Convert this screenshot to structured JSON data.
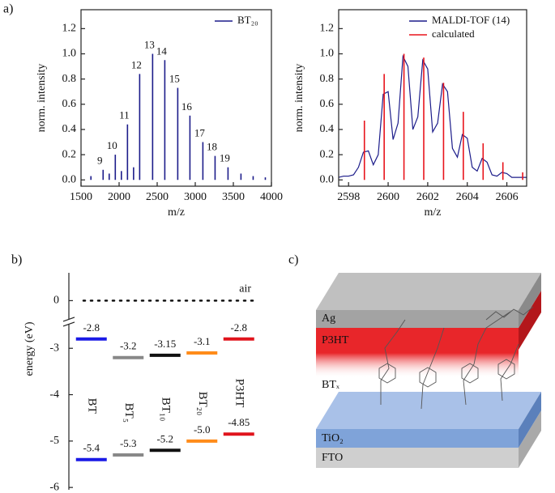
{
  "panel_labels": [
    "a)",
    "b)",
    "c)"
  ],
  "diagram": {
    "layers": [
      "Ag",
      "P3HT",
      "BTₓ",
      "TiO₂",
      "FTO"
    ]
  },
  "chart_data": [
    {
      "type": "spectrum",
      "x_label": "m/z",
      "y_label": "norm. intensity",
      "xlim": [
        1500,
        4000
      ],
      "xticks": [
        1500,
        2000,
        2500,
        3000,
        3500,
        4000
      ],
      "ylim": [
        -0.05,
        1.35
      ],
      "yticks": [
        {
          "value": 0,
          "label": "0.0"
        },
        0.2,
        0.4,
        0.6,
        0.8,
        {
          "value": 1,
          "label": "1.0"
        },
        1.2
      ],
      "legend": "upper right",
      "series": [
        {
          "name": "BT₂₀",
          "style": "stick",
          "color": "#1c1c8a",
          "x": [
            1630,
            1790,
            1870,
            1950,
            2030,
            2110,
            2190,
            2270,
            2440,
            2600,
            2770,
            2930,
            3100,
            3260,
            3430,
            3600,
            3760,
            3920
          ],
          "values": [
            0.03,
            0.08,
            0.05,
            0.2,
            0.07,
            0.44,
            0.1,
            0.84,
            1.0,
            0.95,
            0.73,
            0.51,
            0.3,
            0.19,
            0.1,
            0.05,
            0.03,
            0.02
          ],
          "labels": [
            null,
            "9",
            null,
            "10",
            null,
            "11",
            null,
            "12",
            "13",
            "14",
            "15",
            "16",
            "17",
            "18",
            "19",
            null,
            null,
            null
          ]
        }
      ]
    },
    {
      "type": "spectrum",
      "x_label": "m/z",
      "y_label": "norm. intensity",
      "xlim": [
        2597.5,
        2607
      ],
      "xticks": [
        2598,
        2600,
        2602,
        2604,
        2606
      ],
      "ylim": [
        -0.05,
        1.35
      ],
      "yticks": [
        {
          "value": 0,
          "label": "0.0"
        },
        0.2,
        0.4,
        0.6,
        0.8,
        {
          "value": 1,
          "label": "1.0"
        },
        1.2
      ],
      "legend": "upper right",
      "series": [
        {
          "name": "MALDI-TOF (14)",
          "style": "line",
          "color": "#1c1c8a",
          "x": [
            2597.5,
            2597.75,
            2598,
            2598.25,
            2598.5,
            2598.75,
            2599,
            2599.25,
            2599.5,
            2599.75,
            2600,
            2600.25,
            2600.5,
            2600.75,
            2601,
            2601.25,
            2601.5,
            2601.75,
            2602,
            2602.25,
            2602.5,
            2602.75,
            2603,
            2603.25,
            2603.5,
            2603.75,
            2604,
            2604.25,
            2604.5,
            2604.75,
            2605,
            2605.25,
            2605.5,
            2605.75,
            2606,
            2606.25,
            2606.5,
            2606.75,
            2607
          ],
          "values": [
            0.02,
            0.03,
            0.03,
            0.04,
            0.1,
            0.22,
            0.23,
            0.12,
            0.2,
            0.68,
            0.7,
            0.32,
            0.45,
            0.98,
            0.9,
            0.4,
            0.5,
            0.95,
            0.88,
            0.38,
            0.45,
            0.76,
            0.7,
            0.25,
            0.18,
            0.36,
            0.33,
            0.1,
            0.07,
            0.17,
            0.14,
            0.04,
            0.03,
            0.06,
            0.05,
            0.02,
            0.02,
            0.02,
            0.02
          ]
        },
        {
          "name": "calculated",
          "style": "stick",
          "color": "#e8141c",
          "x": [
            2598.8,
            2599.8,
            2600.8,
            2601.8,
            2602.8,
            2603.8,
            2604.8,
            2605.8,
            2606.8
          ],
          "values": [
            0.47,
            0.84,
            1.0,
            0.97,
            0.77,
            0.54,
            0.29,
            0.14,
            0.06
          ]
        }
      ]
    },
    {
      "type": "energy-levels",
      "y_label": "energy (eV)",
      "ylim": [
        -6.05,
        0.6
      ],
      "yticks": [
        0,
        -3,
        -4,
        -5,
        -6
      ],
      "axis_break": [
        -2.5,
        -0.4
      ],
      "reference": {
        "value": 0,
        "label": "air"
      },
      "categories": [
        "BT",
        "BT₅",
        "BT₁₀",
        "BT₂₀",
        "P3HT"
      ],
      "colors": [
        "#1a1ae6",
        "#888888",
        "#111111",
        "#ff8c1a",
        "#e0141c"
      ],
      "series": [
        {
          "values": [
            -2.8,
            -3.2,
            -3.15,
            -3.1,
            -2.8
          ],
          "value_labels": [
            "-2.8",
            "-3.2",
            "-3.15",
            "-3.1",
            "-2.8"
          ]
        },
        {
          "values": [
            -5.4,
            -5.3,
            -5.2,
            -5.0,
            -4.85
          ],
          "value_labels": [
            "-5.4",
            "-5.3",
            "-5.2",
            "-5.0",
            "-4.85"
          ]
        }
      ]
    }
  ]
}
